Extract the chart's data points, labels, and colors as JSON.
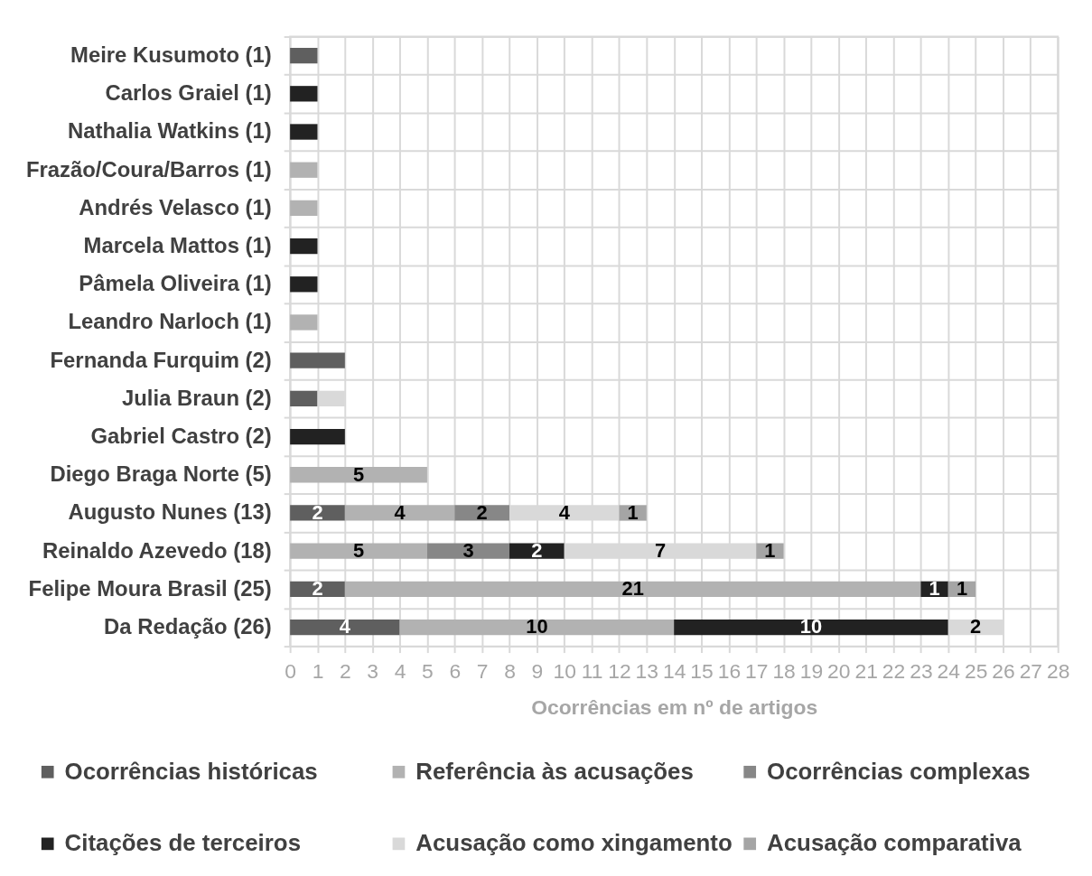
{
  "chart_data": {
    "type": "bar",
    "orientation": "horizontal",
    "stacked": true,
    "categories": [
      "Meire Kusumoto (1)",
      "Carlos Graiel (1)",
      "Nathalia Watkins (1)",
      "Frazão/Coura/Barros (1)",
      "Andrés Velasco (1)",
      "Marcela Mattos (1)",
      "Pâmela Oliveira (1)",
      "Leandro Narloch (1)",
      "Fernanda Furquim (2)",
      "Julia Braun (2)",
      "Gabriel Castro (2)",
      "Diego Braga Norte (5)",
      "Augusto Nunes (13)",
      "Reinaldo Azevedo (18)",
      "Felipe Moura Brasil (25)",
      "Da Redação (26)"
    ],
    "xlabel": "Ocorrências em nº de artigos",
    "xlim": [
      0,
      28
    ],
    "xticks": [
      0,
      1,
      2,
      3,
      4,
      5,
      6,
      7,
      8,
      9,
      10,
      11,
      12,
      13,
      14,
      15,
      16,
      17,
      18,
      19,
      20,
      21,
      22,
      23,
      24,
      25,
      26,
      27,
      28
    ],
    "grid": true,
    "legend": "bottom",
    "series": [
      {
        "name": "Ocorrências históricas",
        "color": "#5f5f5f",
        "values": [
          1,
          null,
          null,
          null,
          null,
          null,
          null,
          null,
          2,
          1,
          null,
          null,
          2,
          null,
          2,
          4
        ],
        "value_labels": [
          null,
          null,
          null,
          null,
          null,
          null,
          null,
          null,
          null,
          null,
          null,
          null,
          "2",
          null,
          "2",
          "4"
        ]
      },
      {
        "name": "Referência às acusações",
        "color": "#b2b2b2",
        "values": [
          null,
          null,
          null,
          1,
          1,
          null,
          null,
          1,
          null,
          null,
          null,
          5,
          4,
          5,
          21,
          10
        ],
        "value_labels": [
          null,
          null,
          null,
          null,
          null,
          null,
          null,
          null,
          null,
          null,
          null,
          "5",
          "4",
          "5",
          "21",
          "10"
        ]
      },
      {
        "name": "Ocorrências complexas",
        "color": "#878787",
        "values": [
          null,
          null,
          null,
          null,
          null,
          null,
          null,
          null,
          null,
          null,
          null,
          null,
          2,
          3,
          null,
          null
        ],
        "value_labels": [
          null,
          null,
          null,
          null,
          null,
          null,
          null,
          null,
          null,
          null,
          null,
          null,
          "2",
          "3",
          null,
          null
        ]
      },
      {
        "name": "Citações de terceiros",
        "color": "#222222",
        "values": [
          null,
          1,
          1,
          null,
          null,
          1,
          1,
          null,
          null,
          null,
          2,
          null,
          null,
          2,
          1,
          10
        ],
        "value_labels": [
          null,
          null,
          null,
          null,
          null,
          null,
          null,
          null,
          null,
          null,
          null,
          null,
          null,
          "2",
          "1",
          "10"
        ]
      },
      {
        "name": "Acusação como xingamento",
        "color": "#d9d9d9",
        "values": [
          null,
          null,
          null,
          null,
          null,
          null,
          null,
          null,
          null,
          1,
          null,
          null,
          4,
          7,
          null,
          2
        ],
        "value_labels": [
          null,
          null,
          null,
          null,
          null,
          null,
          null,
          null,
          null,
          null,
          null,
          null,
          "4",
          "7",
          null,
          "2"
        ]
      },
      {
        "name": "Acusação comparativa",
        "color": "#a5a5a5",
        "values": [
          null,
          null,
          null,
          null,
          null,
          null,
          null,
          null,
          null,
          null,
          null,
          null,
          1,
          1,
          1,
          null
        ],
        "value_labels": [
          null,
          null,
          null,
          null,
          null,
          null,
          null,
          null,
          null,
          null,
          null,
          null,
          "1",
          "1",
          "1",
          null
        ]
      }
    ]
  }
}
